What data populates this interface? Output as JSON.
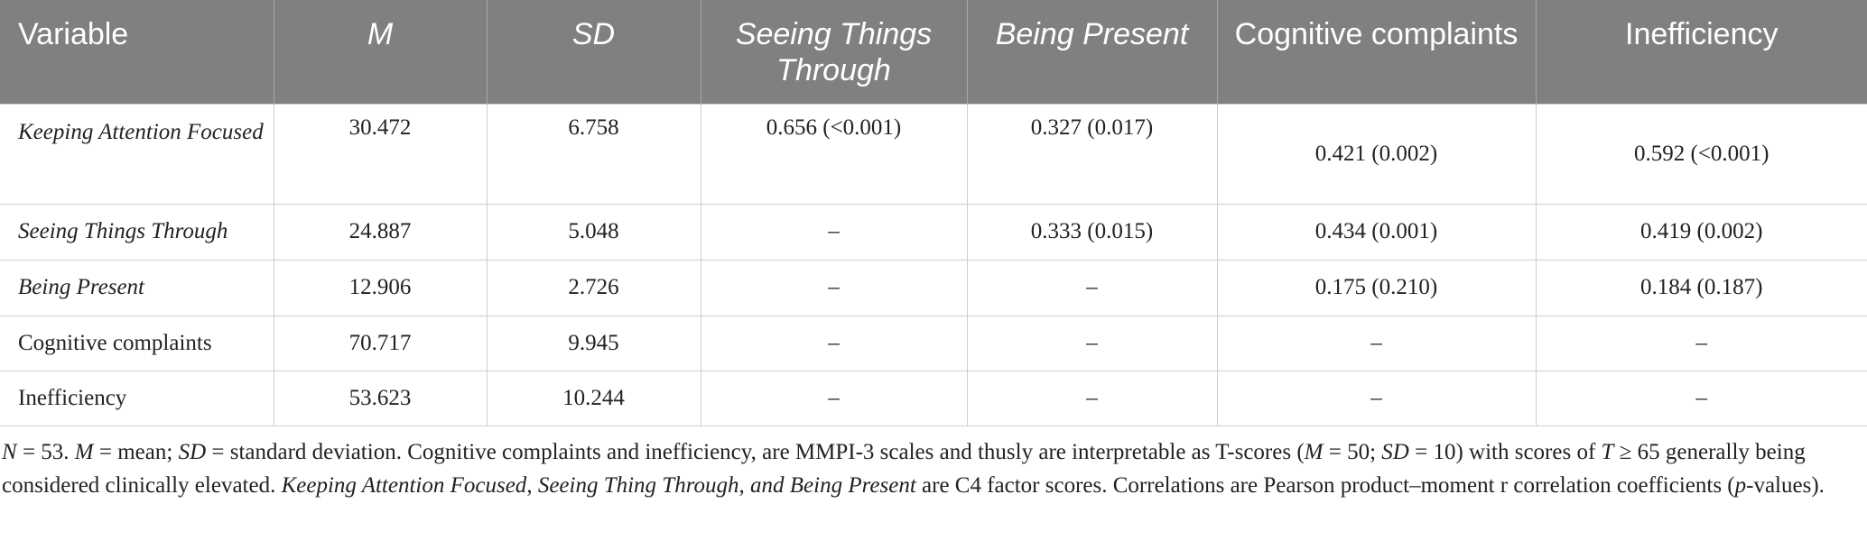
{
  "table": {
    "header": [
      "Variable",
      "M",
      "SD",
      "Seeing Things Through",
      "Being Present",
      "Cognitive complaints",
      "Inefficiency"
    ],
    "rows": [
      [
        "Keeping Attention Focused",
        "30.472",
        "6.758",
        "0.656 (<0.001)",
        "0.327 (0.017)",
        "0.421 (0.002)",
        "0.592 (<0.001)"
      ],
      [
        "Seeing Things Through",
        "24.887",
        "5.048",
        "–",
        "0.333 (0.015)",
        "0.434 (0.001)",
        "0.419 (0.002)"
      ],
      [
        "Being Present",
        "12.906",
        "2.726",
        "–",
        "–",
        "0.175 (0.210)",
        "0.184 (0.187)"
      ],
      [
        "Cognitive complaints",
        "70.717",
        "9.945",
        "–",
        "–",
        "–",
        "–"
      ],
      [
        "Inefficiency",
        "53.623",
        "10.244",
        "–",
        "–",
        "–",
        "–"
      ]
    ]
  },
  "note": [
    "N",
    " = 53. ",
    "M",
    " = mean; ",
    "SD",
    " = standard deviation. Cognitive complaints and inefficiency, are MMPI-3 scales and thusly are interpretable as T-scores (",
    "M",
    " = 50; ",
    "SD",
    " = 10) with scores of ",
    "T",
    " ≥ 65 generally being considered clinically elevated. ",
    "Keeping Attention Focused",
    ", ",
    "Seeing Thing Through",
    ", ",
    "and Being Present",
    " are C4 factor scores. Correlations are Pearson product–moment r correlation coefficients (",
    "p",
    "-values)."
  ]
}
